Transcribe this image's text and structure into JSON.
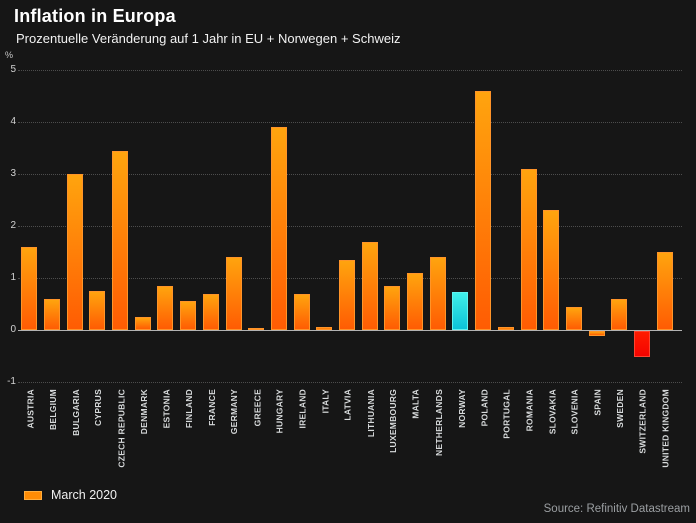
{
  "header": {
    "title": "Inflation in Europa",
    "subtitle": "Prozentuelle Veränderung auf 1 Jahr in EU + Norwegen + Schweiz"
  },
  "chart_data": {
    "type": "bar",
    "title": "Inflation in Europa",
    "subtitle": "Prozentuelle Veränderung auf 1 Jahr in EU + Norwegen + Schweiz",
    "ylabel": "%",
    "ylim": [
      -1,
      5
    ],
    "yticks": [
      5,
      4,
      3,
      2,
      1,
      0,
      -1
    ],
    "grid": "horizontal-dotted",
    "categories": [
      "AUSTRIA",
      "BELGIUM",
      "BULGARIA",
      "CYPRUS",
      "CZECH REPUBLIC",
      "DENMARK",
      "ESTONIA",
      "FINLAND",
      "FRANCE",
      "GERMANY",
      "GREECE",
      "HUNGARY",
      "IRELAND",
      "ITALY",
      "LATVIA",
      "LITHUANIA",
      "LUXEMBOURG",
      "MALTA",
      "NETHERLANDS",
      "NORWAY",
      "POLAND",
      "PORTUGAL",
      "ROMANIA",
      "SLOVAKIA",
      "SLOVENIA",
      "SPAIN",
      "SWEDEN",
      "SWITZERLAND",
      "UNITED KINGDOM"
    ],
    "values": [
      1.6,
      0.6,
      3.0,
      0.75,
      3.45,
      0.25,
      0.85,
      0.55,
      0.7,
      1.4,
      0.03,
      3.9,
      0.7,
      0.06,
      1.35,
      1.7,
      0.85,
      1.1,
      1.4,
      0.73,
      4.6,
      0.05,
      3.1,
      2.3,
      0.45,
      -0.1,
      0.6,
      -0.5,
      1.5
    ],
    "color_keys": [
      "orange",
      "orange",
      "orange",
      "orange",
      "orange",
      "orange",
      "orange",
      "orange",
      "orange",
      "orange",
      "orange",
      "orange",
      "orange",
      "orange",
      "orange",
      "orange",
      "orange",
      "orange",
      "orange",
      "cyan",
      "orange",
      "orange",
      "orange",
      "orange",
      "orange",
      "orange",
      "orange",
      "red",
      "orange"
    ],
    "legend": {
      "label": "March 2020",
      "position": "bottom-left",
      "swatch_color": "#ff8c05"
    }
  },
  "colors": {
    "background": "#161616",
    "bar_orange_top": "#ffa40e",
    "bar_orange_bottom": "#ff5c03",
    "bar_orange_border": "#ff9429",
    "bar_cyan_top": "#40efe9",
    "bar_cyan_bottom": "#0cc3d8",
    "bar_cyan_border": "#5ef2ef",
    "bar_red_top": "#ff1c00",
    "bar_red_bottom": "#f40300",
    "bar_red_border": "#ff4330",
    "grid_line": "#4d4d4d",
    "zero_line": "#b3b3b3",
    "tick_text": "#d2d2d2",
    "label_text": "#d8dbdc"
  },
  "footer": {
    "source": "Source: Refinitiv Datastream"
  }
}
